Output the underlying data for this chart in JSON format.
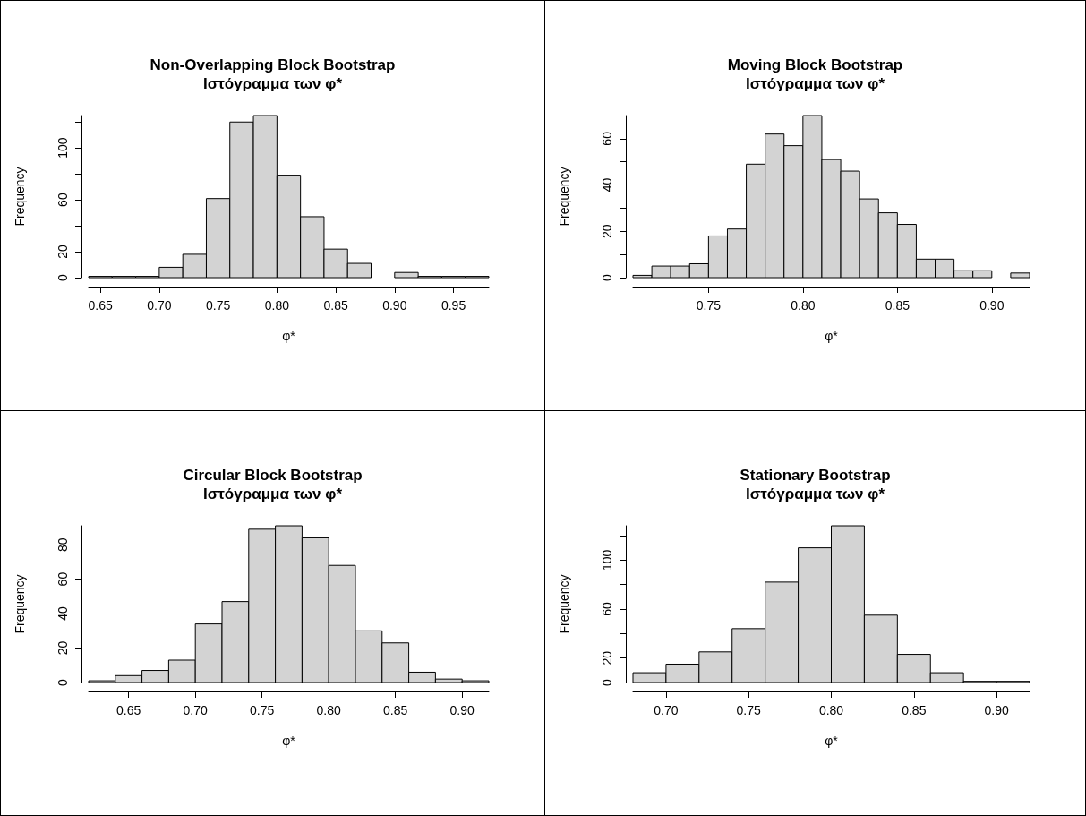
{
  "chart_data": [
    {
      "type": "histogram",
      "title": "Non-Overlapping Block Bootstrap",
      "subtitle": "Ιστόγραμμα των φ*",
      "xlabel": "φ*",
      "ylabel": "Frequency",
      "color": "#d3d3d3",
      "bins": [
        0.64,
        0.66,
        0.68,
        0.7,
        0.72,
        0.74,
        0.76,
        0.78,
        0.8,
        0.82,
        0.84,
        0.86,
        0.88,
        0.9,
        0.92,
        0.94,
        0.96,
        0.98
      ],
      "values": [
        1,
        1,
        1,
        8,
        18,
        61,
        120,
        125,
        79,
        47,
        22,
        11,
        0,
        4,
        1,
        1,
        1
      ],
      "xlim": [
        0.64,
        0.98
      ],
      "xticks": [
        0.65,
        {
          "value": 0.7,
          "label": "0.70"
        },
        0.75,
        {
          "value": 0.8,
          "label": "0.80"
        },
        0.85,
        {
          "value": 0.9,
          "label": "0.90"
        },
        0.95
      ],
      "ylim": [
        0,
        125
      ],
      "yticks": [
        0,
        20,
        {
          "value": 40,
          "label": null
        },
        60,
        {
          "value": 80,
          "label": null
        },
        100,
        {
          "value": 120,
          "label": null
        }
      ]
    },
    {
      "type": "histogram",
      "title": "Moving Block Bootstrap",
      "subtitle": "Ιστόγραμμα των φ*",
      "xlabel": "φ*",
      "ylabel": "Frequency",
      "color": "#d3d3d3",
      "bins": [
        0.71,
        0.72,
        0.73,
        0.74,
        0.75,
        0.76,
        0.77,
        0.78,
        0.79,
        0.8,
        0.81,
        0.82,
        0.83,
        0.84,
        0.85,
        0.86,
        0.87,
        0.88,
        0.89,
        0.9,
        0.91,
        0.92
      ],
      "values": [
        1,
        5,
        5,
        6,
        18,
        21,
        49,
        62,
        57,
        70,
        51,
        46,
        34,
        28,
        23,
        8,
        8,
        3,
        3,
        0,
        2
      ],
      "xlim": [
        0.71,
        0.92
      ],
      "xticks": [
        0.75,
        {
          "value": 0.8,
          "label": "0.80"
        },
        0.85,
        {
          "value": 0.9,
          "label": "0.90"
        }
      ],
      "ylim": [
        0,
        70
      ],
      "yticks": [
        0,
        {
          "value": 10,
          "label": null
        },
        20,
        {
          "value": 30,
          "label": null
        },
        40,
        {
          "value": 50,
          "label": null
        },
        60,
        {
          "value": 70,
          "label": null
        }
      ]
    },
    {
      "type": "histogram",
      "title": "Circular Block Bootstrap",
      "subtitle": "Ιστόγραμμα των φ*",
      "xlabel": "φ*",
      "ylabel": "Frequency",
      "color": "#d3d3d3",
      "bins": [
        0.62,
        0.64,
        0.66,
        0.68,
        0.7,
        0.72,
        0.74,
        0.76,
        0.78,
        0.8,
        0.82,
        0.84,
        0.86,
        0.88,
        0.9,
        0.92
      ],
      "values": [
        1,
        4,
        7,
        13,
        34,
        47,
        89,
        91,
        84,
        68,
        30,
        23,
        6,
        2,
        1
      ],
      "xlim": [
        0.62,
        0.92
      ],
      "xticks": [
        0.65,
        {
          "value": 0.7,
          "label": "0.70"
        },
        0.75,
        {
          "value": 0.8,
          "label": "0.80"
        },
        0.85,
        {
          "value": 0.9,
          "label": "0.90"
        }
      ],
      "ylim": [
        0,
        91
      ],
      "yticks": [
        0,
        20,
        40,
        60,
        80
      ]
    },
    {
      "type": "histogram",
      "title": "Stationary Bootstrap",
      "subtitle": "Ιστόγραμμα των φ*",
      "xlabel": "φ*",
      "ylabel": "Frequency",
      "color": "#d3d3d3",
      "bins": [
        0.68,
        0.7,
        0.72,
        0.74,
        0.76,
        0.78,
        0.8,
        0.82,
        0.84,
        0.86,
        0.88,
        0.9,
        0.92
      ],
      "values": [
        8,
        15,
        25,
        44,
        82,
        110,
        128,
        55,
        23,
        8,
        1,
        1
      ],
      "xlim": [
        0.68,
        0.92
      ],
      "xticks": [
        {
          "value": 0.7,
          "label": "0.70"
        },
        0.75,
        {
          "value": 0.8,
          "label": "0.80"
        },
        0.85,
        {
          "value": 0.9,
          "label": "0.90"
        }
      ],
      "ylim": [
        0,
        128
      ],
      "yticks": [
        0,
        20,
        {
          "value": 40,
          "label": null
        },
        60,
        {
          "value": 80,
          "label": null
        },
        100,
        {
          "value": 120,
          "label": null
        }
      ]
    }
  ]
}
